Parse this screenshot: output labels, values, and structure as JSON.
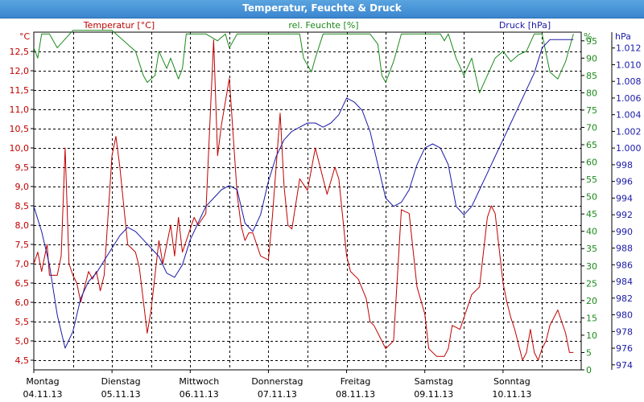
{
  "window": {
    "title": "Temperatur, Feuchte & Druck"
  },
  "colors": {
    "temperature": "#c00000",
    "humidity": "#1a8a1a",
    "pressure": "#1a1aa8",
    "grid": "#000000",
    "titlebar": "#3b86cf"
  },
  "chart_data": {
    "type": "line",
    "grid": true,
    "x_axis": {
      "days": [
        {
          "day": "Montag",
          "date": "04.11.13"
        },
        {
          "day": "Dienstag",
          "date": "05.11.13"
        },
        {
          "day": "Mittwoch",
          "date": "06.11.13"
        },
        {
          "day": "Donnerstag",
          "date": "07.11.13"
        },
        {
          "day": "Freitag",
          "date": "08.11.13"
        },
        {
          "day": "Samstag",
          "date": "09.11.13"
        },
        {
          "day": "Sonntag",
          "date": "10.11.13"
        }
      ],
      "range": [
        0,
        7
      ]
    },
    "axes": {
      "temperature": {
        "label": "Temperatur [°C]",
        "unit": "°C",
        "ylim": [
          4.25,
          13.0
        ],
        "ticks": [
          "4,5",
          "5,0",
          "5,5",
          "6,0",
          "6,5",
          "7,0",
          "7,5",
          "8,0",
          "8,5",
          "9,0",
          "9,5",
          "10,0",
          "10,5",
          "11,0",
          "11,5",
          "12,0",
          "12,5"
        ]
      },
      "humidity": {
        "label": "rel. Feuchte [%]",
        "unit": "%",
        "ylim": [
          0,
          97.5
        ],
        "ticks": [
          "0",
          "5",
          "10",
          "15",
          "20",
          "25",
          "30",
          "35",
          "40",
          "45",
          "50",
          "55",
          "60",
          "65",
          "70",
          "75",
          "80",
          "85",
          "90",
          "95"
        ]
      },
      "pressure": {
        "label": "Druck [hPa]",
        "unit": "hPa",
        "ylim": [
          973.4,
          1013.9
        ],
        "ticks": [
          "974",
          "976",
          "978",
          "980",
          "982",
          "984",
          "986",
          "988",
          "990",
          "992",
          "994",
          "996",
          "998",
          "1.000",
          "1.002",
          "1.004",
          "1.006",
          "1.008",
          "1.010",
          "1.012"
        ]
      }
    },
    "series": [
      {
        "name": "Temperatur [°C]",
        "axis": "temperature",
        "color": "#c00000",
        "x": [
          0,
          0.05,
          0.1,
          0.17,
          0.2,
          0.3,
          0.35,
          0.4,
          0.45,
          0.5,
          0.55,
          0.6,
          0.7,
          0.75,
          0.8,
          0.85,
          0.9,
          1,
          1.05,
          1.1,
          1.2,
          1.3,
          1.35,
          1.45,
          1.5,
          1.6,
          1.65,
          1.75,
          1.8,
          1.85,
          1.9,
          2,
          2.05,
          2.1,
          2.2,
          2.3,
          2.35,
          2.4,
          2.5,
          2.6,
          2.65,
          2.7,
          2.75,
          2.8,
          2.9,
          3,
          3.05,
          3.15,
          3.2,
          3.25,
          3.3,
          3.4,
          3.5,
          3.6,
          3.7,
          3.75,
          3.85,
          3.9,
          4,
          4.05,
          4.15,
          4.25,
          4.3,
          4.35,
          4.45,
          4.5,
          4.6,
          4.7,
          4.8,
          4.9,
          5,
          5.05,
          5.15,
          5.25,
          5.3,
          5.35,
          5.45,
          5.5,
          5.6,
          5.7,
          5.8,
          5.85,
          5.9,
          6,
          6.05,
          6.1,
          6.15,
          6.25,
          6.3,
          6.35,
          6.4,
          6.45,
          6.5,
          6.55,
          6.6,
          6.7,
          6.8,
          6.85,
          6.9
        ],
        "values": [
          7.0,
          7.3,
          6.8,
          7.5,
          6.7,
          6.7,
          7.2,
          10.0,
          7.0,
          6.7,
          6.5,
          6.0,
          6.8,
          6.6,
          6.8,
          6.3,
          6.7,
          9.8,
          10.3,
          9.5,
          7.5,
          7.3,
          6.9,
          5.2,
          5.8,
          7.6,
          7.0,
          8.0,
          7.2,
          8.2,
          7.3,
          7.9,
          8.2,
          8.0,
          8.3,
          12.8,
          9.8,
          10.6,
          11.8,
          8.8,
          8.0,
          7.6,
          7.8,
          7.8,
          7.2,
          7.1,
          8.2,
          10.9,
          9.0,
          8.0,
          7.9,
          9.2,
          8.9,
          10.0,
          9.2,
          8.8,
          9.5,
          9.2,
          7.2,
          6.8,
          6.6,
          6.1,
          5.5,
          5.4,
          5.0,
          4.8,
          5.0,
          8.4,
          8.3,
          6.4,
          5.7,
          4.8,
          4.6,
          4.6,
          4.8,
          5.4,
          5.3,
          5.6,
          6.2,
          6.4,
          8.2,
          8.5,
          8.3,
          6.5,
          6.0,
          5.6,
          5.3,
          4.5,
          4.7,
          5.3,
          4.7,
          4.5,
          4.8,
          5.0,
          5.4,
          5.8,
          5.2,
          4.7,
          4.7
        ]
      },
      {
        "name": "rel. Feuchte [%]",
        "axis": "humidity",
        "color": "#1a8a1a",
        "x": [
          0,
          0.05,
          0.1,
          0.2,
          0.3,
          0.5,
          1.0,
          1.1,
          1.3,
          1.4,
          1.45,
          1.55,
          1.6,
          1.7,
          1.75,
          1.85,
          1.9,
          1.95,
          2.0,
          2.2,
          2.35,
          2.45,
          2.5,
          2.6,
          2.7,
          2.8,
          2.9,
          3.0,
          3.2,
          3.35,
          3.4,
          3.45,
          3.5,
          3.55,
          3.6,
          3.7,
          3.8,
          3.9,
          4.0,
          4.1,
          4.2,
          4.3,
          4.4,
          4.45,
          4.5,
          4.6,
          4.7,
          5.0,
          5.1,
          5.2,
          5.25,
          5.3,
          5.4,
          5.5,
          5.6,
          5.7,
          5.8,
          5.9,
          6.0,
          6.1,
          6.2,
          6.3,
          6.4,
          6.5,
          6.6,
          6.7,
          6.8,
          6.9
        ],
        "values": [
          93,
          90,
          97,
          97,
          93,
          98,
          98,
          96,
          92,
          85,
          83,
          85,
          92,
          87,
          90,
          84,
          87,
          97,
          97,
          97,
          95,
          97,
          93,
          97,
          97,
          97,
          97,
          97,
          97,
          97,
          97,
          90,
          88,
          86,
          90,
          97,
          97,
          97,
          97,
          97,
          97,
          97,
          94,
          85,
          83,
          89,
          97,
          97,
          97,
          97,
          95,
          97,
          90,
          85,
          90,
          80,
          85,
          90,
          92,
          89,
          91,
          92,
          97,
          97,
          86,
          84,
          89,
          97
        ]
      },
      {
        "name": "Druck [hPa]",
        "axis": "pressure",
        "color": "#1a1aa8",
        "x": [
          0,
          0.1,
          0.2,
          0.3,
          0.4,
          0.5,
          0.6,
          0.7,
          0.8,
          0.9,
          1.0,
          1.1,
          1.2,
          1.3,
          1.4,
          1.5,
          1.6,
          1.7,
          1.8,
          1.9,
          2.0,
          2.1,
          2.2,
          2.3,
          2.4,
          2.5,
          2.6,
          2.7,
          2.8,
          2.9,
          3.0,
          3.1,
          3.2,
          3.3,
          3.4,
          3.5,
          3.6,
          3.7,
          3.8,
          3.9,
          4.0,
          4.1,
          4.2,
          4.3,
          4.4,
          4.5,
          4.6,
          4.7,
          4.8,
          4.9,
          5.0,
          5.1,
          5.2,
          5.3,
          5.4,
          5.5,
          5.6,
          5.7,
          5.8,
          5.9,
          6.0,
          6.1,
          6.2,
          6.3,
          6.4,
          6.5,
          6.6,
          6.7,
          6.8,
          6.9
        ],
        "values": [
          993,
          990,
          986,
          980,
          976,
          978,
          982,
          984,
          985,
          986.5,
          988,
          989.5,
          990.5,
          990,
          989,
          988,
          987,
          985,
          984.5,
          986,
          989,
          991,
          993,
          994,
          995,
          995.5,
          995,
          991,
          990,
          992,
          996,
          999,
          1001,
          1002,
          1002.5,
          1003,
          1003,
          1002.5,
          1003,
          1004,
          1006,
          1005.5,
          1004.5,
          1002,
          998,
          994,
          993,
          993.5,
          995,
          998,
          1000,
          1000.5,
          1000,
          998,
          993,
          992,
          993,
          995,
          997,
          999,
          1001,
          1003,
          1005,
          1007,
          1009,
          1012,
          1013,
          1013,
          1013,
          1013
        ]
      }
    ]
  }
}
